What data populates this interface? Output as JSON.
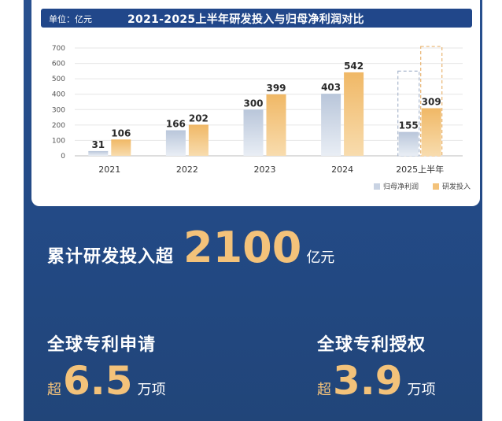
{
  "chart_data": {
    "type": "bar",
    "title": "2021-2025上半年研发投入与归母净利润对比",
    "unit_label": "单位：亿元",
    "categories": [
      "2021",
      "2022",
      "2023",
      "2024",
      "2025上半年"
    ],
    "series": [
      {
        "name": "归母净利润",
        "values": [
          31,
          166,
          300,
          403,
          155
        ],
        "color": "#c9d3e3"
      },
      {
        "name": "研发投入",
        "values": [
          106,
          202,
          399,
          542,
          309
        ],
        "color": "#f3c27a"
      }
    ],
    "yticks": [
      "0",
      "100",
      "200",
      "300",
      "400",
      "500",
      "600",
      "700"
    ],
    "ylim": [
      0,
      700
    ],
    "grid": true,
    "legend": "bottom-right",
    "annotation": "2025上半年 bars shown with dashed outline"
  },
  "summary": {
    "prefix": "累计研发投入超",
    "number": "2100",
    "unit": "亿元"
  },
  "stats": [
    {
      "title": "全球专利申请",
      "prefix": "超",
      "number": "6.5",
      "unit": "万项"
    },
    {
      "title": "全球专利授权",
      "prefix": "超",
      "number": "3.9",
      "unit": "万项"
    }
  ],
  "colors": {
    "background": "#234a86",
    "accent": "#f3c27a",
    "profit_bar": "#c9d3e3"
  }
}
